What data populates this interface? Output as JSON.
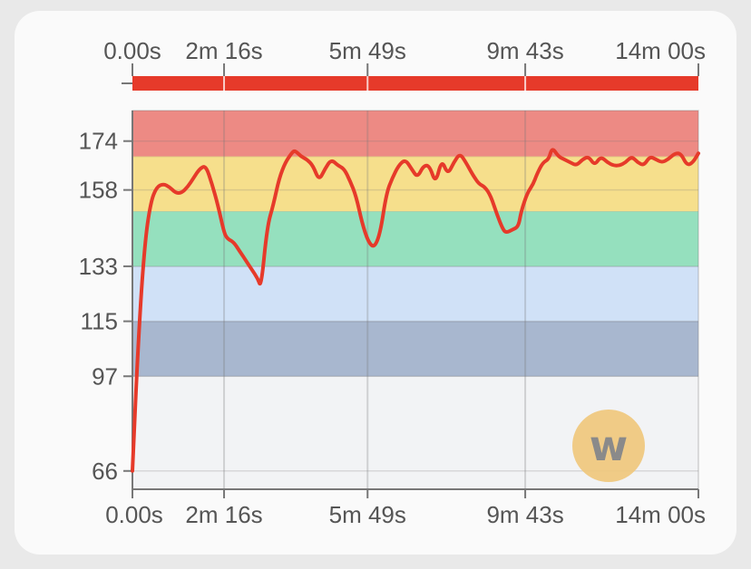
{
  "chart_data": {
    "type": "line",
    "title": "",
    "xlabel": "",
    "ylabel": "",
    "duration_seconds": 840,
    "x_ticks": [
      {
        "t": 0,
        "label": "0.00s"
      },
      {
        "t": 136,
        "label": "2m 16s"
      },
      {
        "t": 349,
        "label": "5m 49s"
      },
      {
        "t": 583,
        "label": "9m 43s"
      },
      {
        "t": 840,
        "label": "14m 00s"
      }
    ],
    "y_ticks": [
      66,
      97,
      115,
      133,
      158,
      174
    ],
    "ylim": [
      60,
      184
    ],
    "zones": [
      {
        "name": "zone-1",
        "from": 60,
        "to": 97,
        "color": "#f2f3f5"
      },
      {
        "name": "zone-2",
        "from": 97,
        "to": 115,
        "color": "#a8b7cf"
      },
      {
        "name": "zone-3",
        "from": 115,
        "to": 133,
        "color": "#d0e1f7"
      },
      {
        "name": "zone-4",
        "from": 133,
        "to": 151,
        "color": "#95e0be"
      },
      {
        "name": "zone-5",
        "from": 151,
        "to": 169,
        "color": "#f6df8c"
      },
      {
        "name": "zone-6",
        "from": 169,
        "to": 184,
        "color": "#ed8a84"
      }
    ],
    "series": [
      {
        "color": "#e63a2a",
        "points": [
          [
            0,
            66
          ],
          [
            9,
            110
          ],
          [
            18,
            140
          ],
          [
            27,
            154
          ],
          [
            36,
            159
          ],
          [
            46,
            160
          ],
          [
            55,
            159
          ],
          [
            64,
            157
          ],
          [
            73,
            157
          ],
          [
            82,
            159
          ],
          [
            91,
            162
          ],
          [
            100,
            165
          ],
          [
            109,
            166
          ],
          [
            118,
            160
          ],
          [
            127,
            153
          ],
          [
            136,
            144
          ],
          [
            141,
            142
          ],
          [
            150,
            141
          ],
          [
            159,
            138
          ],
          [
            168,
            135
          ],
          [
            177,
            132
          ],
          [
            186,
            129
          ],
          [
            191,
            126
          ],
          [
            200,
            146
          ],
          [
            209,
            153
          ],
          [
            218,
            162
          ],
          [
            227,
            167
          ],
          [
            236,
            170
          ],
          [
            241,
            171
          ],
          [
            250,
            169
          ],
          [
            259,
            168
          ],
          [
            268,
            166
          ],
          [
            277,
            161
          ],
          [
            286,
            165
          ],
          [
            295,
            168
          ],
          [
            305,
            166
          ],
          [
            314,
            165
          ],
          [
            323,
            161
          ],
          [
            332,
            156
          ],
          [
            341,
            147
          ],
          [
            350,
            141
          ],
          [
            359,
            139
          ],
          [
            368,
            144
          ],
          [
            377,
            157
          ],
          [
            386,
            162
          ],
          [
            395,
            166
          ],
          [
            405,
            168
          ],
          [
            414,
            165
          ],
          [
            423,
            162
          ],
          [
            432,
            166
          ],
          [
            441,
            166
          ],
          [
            450,
            160
          ],
          [
            459,
            168
          ],
          [
            468,
            163
          ],
          [
            477,
            167
          ],
          [
            486,
            170
          ],
          [
            495,
            167
          ],
          [
            505,
            163
          ],
          [
            514,
            160
          ],
          [
            523,
            159
          ],
          [
            532,
            156
          ],
          [
            541,
            150
          ],
          [
            550,
            145
          ],
          [
            555,
            144
          ],
          [
            564,
            145
          ],
          [
            573,
            146
          ],
          [
            577,
            151
          ],
          [
            586,
            157
          ],
          [
            595,
            160
          ],
          [
            600,
            163
          ],
          [
            609,
            167
          ],
          [
            618,
            168
          ],
          [
            623,
            172
          ],
          [
            632,
            169
          ],
          [
            641,
            168
          ],
          [
            650,
            167
          ],
          [
            659,
            166
          ],
          [
            668,
            168
          ],
          [
            677,
            169
          ],
          [
            686,
            166
          ],
          [
            695,
            169
          ],
          [
            705,
            167
          ],
          [
            714,
            166
          ],
          [
            723,
            166
          ],
          [
            732,
            167
          ],
          [
            741,
            169
          ],
          [
            750,
            167
          ],
          [
            759,
            166
          ],
          [
            768,
            169
          ],
          [
            777,
            168
          ],
          [
            786,
            167
          ],
          [
            795,
            168
          ],
          [
            805,
            170
          ],
          [
            814,
            170
          ],
          [
            823,
            166
          ],
          [
            832,
            167
          ],
          [
            840,
            170
          ]
        ]
      }
    ]
  },
  "colors": {
    "line": "#e63a2a",
    "progress_bar": "#e63a2a",
    "watermark_circle": "#f0c67a",
    "watermark_glyph": "#8a8a8a"
  },
  "watermark": {
    "icon": "w-logo-icon",
    "glyph": "w"
  }
}
